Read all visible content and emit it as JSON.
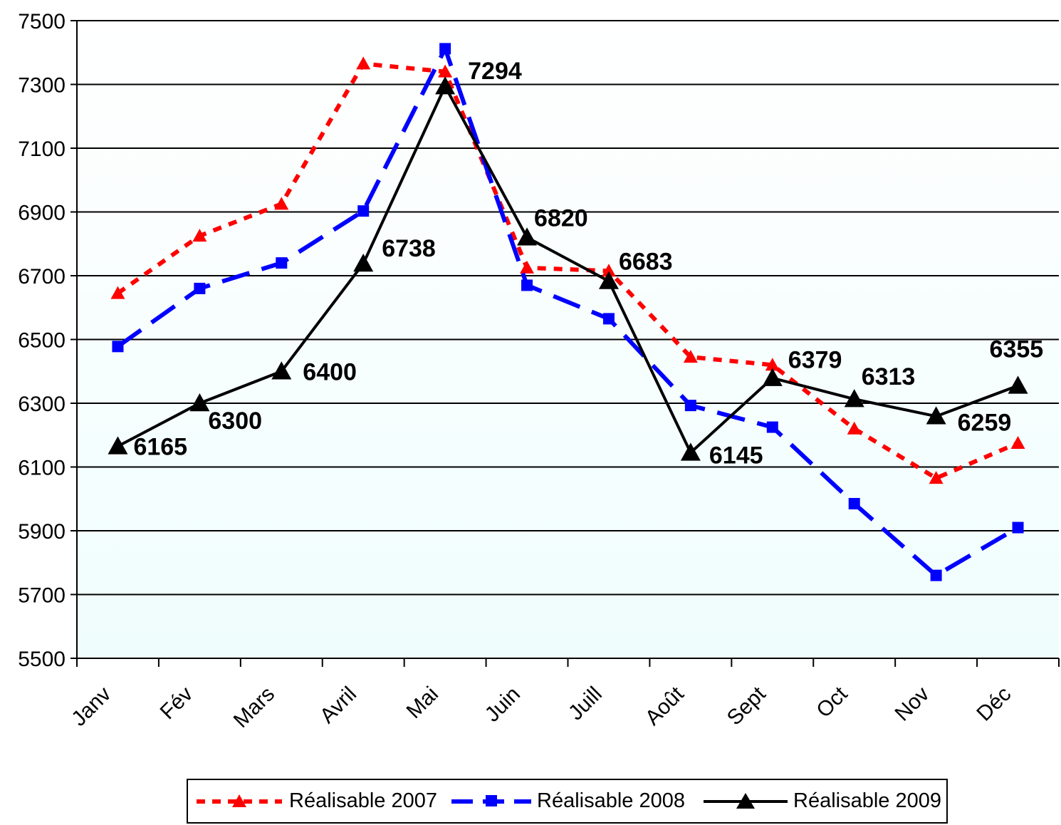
{
  "chart_data": {
    "type": "line",
    "categories": [
      "Janv",
      "Fév",
      "Mars",
      "Avril",
      "Mai",
      "Juin",
      "Juill",
      "Août",
      "Sept",
      "Oct",
      "Nov",
      "Déc"
    ],
    "ylim": [
      5500,
      7500
    ],
    "yticks": [
      5500,
      5700,
      5900,
      6100,
      6300,
      6500,
      6700,
      6900,
      7100,
      7300,
      7500
    ],
    "grid": true,
    "legend_position": "bottom",
    "series": [
      {
        "name": "Réalisable 2007",
        "color": "#ff0000",
        "style": "dotted",
        "marker": "triangle",
        "values": [
          6645,
          6825,
          6925,
          7365,
          7340,
          6725,
          6715,
          6445,
          6420,
          6220,
          6065,
          6175
        ]
      },
      {
        "name": "Réalisable 2008",
        "color": "#0000ff",
        "style": "dashed",
        "marker": "square",
        "values": [
          6478,
          6660,
          6740,
          6903,
          7412,
          6670,
          6565,
          6293,
          6225,
          5985,
          5760,
          5910
        ]
      },
      {
        "name": "Réalisable 2009",
        "color": "#000000",
        "style": "solid",
        "marker": "triangle",
        "values": [
          6165,
          6300,
          6400,
          6738,
          7294,
          6820,
          6683,
          6145,
          6379,
          6313,
          6259,
          6355
        ],
        "data_labels": [
          "6165",
          "6300",
          "6400",
          "6738",
          "7294",
          "6820",
          "6683",
          "6145",
          "6379",
          "6313",
          "6259",
          "6355"
        ]
      }
    ]
  }
}
